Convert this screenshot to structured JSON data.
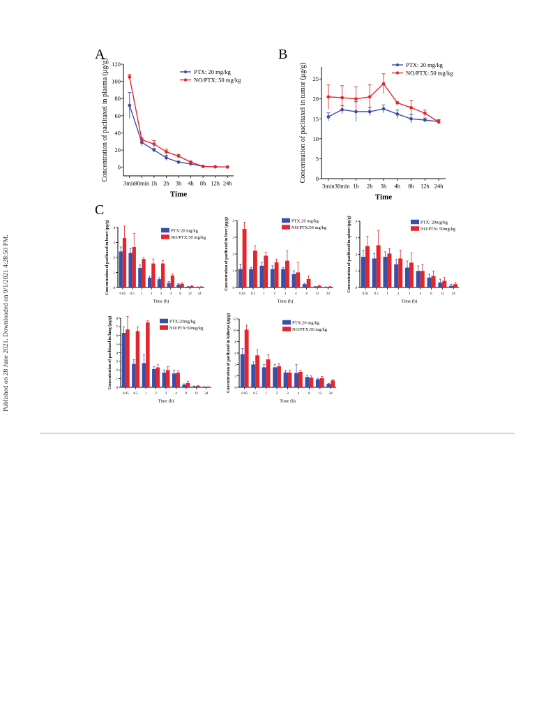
{
  "side_note": "Published on 28 June 2021. Downloaded on 9/1/2021 4:28:50 PM.",
  "colors": {
    "ptx": "#3a4fa8",
    "nopt": "#e3252c",
    "axis": "#000000"
  },
  "chart_data": [
    {
      "panel": "A",
      "type": "line",
      "ylabel": "Concentration of paclitaxel in plasma (μg/g)",
      "xlabel": "Time",
      "categories": [
        "3min",
        "30min",
        "1h",
        "2h",
        "3h",
        "4h",
        "8h",
        "12h",
        "24h"
      ],
      "ylim": [
        -10,
        120
      ],
      "yticks": [
        0,
        20,
        40,
        60,
        80,
        100,
        120
      ],
      "legend_position": "top-right",
      "series": [
        {
          "name": "PTX: 20 mg/kg",
          "values": [
            72,
            29,
            20,
            11,
            6,
            4,
            1,
            0.5,
            0.3
          ],
          "errors": [
            15,
            4,
            2,
            3,
            1,
            1,
            0.5,
            0.3,
            0.2
          ]
        },
        {
          "name": "NO/PTX: 50 mg/kg",
          "values": [
            105,
            32,
            27,
            18,
            13,
            6,
            1,
            0.5,
            0.3
          ],
          "errors": [
            3,
            3,
            4,
            3,
            2,
            1,
            0.5,
            0.3,
            0.2
          ]
        }
      ]
    },
    {
      "panel": "B",
      "type": "line",
      "ylabel": "Concentration of paclitaxel in tumor (μg/g)",
      "xlabel": "Time",
      "categories": [
        "3min",
        "30min",
        "1h",
        "2h",
        "3h",
        "4h",
        "8h",
        "12h",
        "24h"
      ],
      "ylim": [
        0,
        28
      ],
      "yticks": [
        0,
        5,
        10,
        15,
        20,
        25
      ],
      "legend_position": "top-right",
      "series": [
        {
          "name": "PTX: 20 mg/kg",
          "values": [
            15.5,
            17.3,
            16.8,
            16.8,
            17.5,
            16.2,
            15.0,
            14.7,
            14.3
          ],
          "errors": [
            1.0,
            1.0,
            2.5,
            1.0,
            1.0,
            1.0,
            1.0,
            0.5,
            0.5
          ]
        },
        {
          "name": "NO/PTX: 50 mg/kg",
          "values": [
            20.5,
            20.3,
            20.0,
            20.5,
            23.8,
            19.0,
            17.8,
            16.4,
            14.2
          ],
          "errors": [
            3.0,
            3.0,
            3.0,
            3.0,
            2.5,
            0.3,
            1.8,
            0.8,
            0.5
          ]
        }
      ]
    },
    {
      "panel": "C-heart",
      "type": "bar",
      "ylabel": "Concentration of paclitaxel in heart (μg/g)",
      "xlabel": "Time (h)",
      "categories": [
        "0.05",
        "0.5",
        "1",
        "2",
        "3",
        "4",
        "8",
        "12",
        "24"
      ],
      "ylim": [
        0,
        4
      ],
      "yticks": [
        0,
        1,
        2,
        3,
        4
      ],
      "legend_position": "top-right",
      "series": [
        {
          "name": "PTX:20 mg/kg",
          "values": [
            2.4,
            2.3,
            1.3,
            0.65,
            0.55,
            0.3,
            0.2,
            0.05,
            0.03
          ],
          "errors": [
            0.3,
            0.3,
            0.2,
            0.1,
            0.1,
            0.1,
            0.05,
            0.02,
            0.01
          ]
        },
        {
          "name": "NO/PTX:50 mg/kg",
          "values": [
            3.3,
            2.7,
            1.9,
            1.6,
            1.6,
            0.8,
            0.25,
            0.1,
            0.05
          ],
          "errors": [
            0.8,
            0.9,
            0.1,
            0.3,
            0.2,
            0.1,
            0.05,
            0.03,
            0.01
          ]
        }
      ]
    },
    {
      "panel": "C-liver",
      "type": "bar",
      "ylabel": "Concentration of paclitaxel in liver (μg/g)",
      "xlabel": "Time (h)",
      "categories": [
        "0.05",
        "0.5",
        "1",
        "2",
        "3",
        "4",
        "8",
        "12",
        "24"
      ],
      "ylim": [
        0,
        4
      ],
      "yticks": [
        0,
        1,
        2,
        3,
        4
      ],
      "legend_position": "top-right",
      "series": [
        {
          "name": "PTX:20 mg/kg",
          "values": [
            1.1,
            1.1,
            1.3,
            1.1,
            1.1,
            0.8,
            0.2,
            0.05,
            0.03
          ],
          "errors": [
            0.3,
            0.1,
            0.2,
            0.2,
            0.1,
            0.2,
            0.05,
            0.02,
            0.01
          ]
        },
        {
          "name": "NO/PTX:50 mg/kg",
          "values": [
            3.5,
            2.2,
            1.9,
            1.5,
            1.6,
            0.9,
            0.5,
            0.1,
            0.05
          ],
          "errors": [
            0.4,
            0.3,
            0.2,
            0.2,
            0.6,
            0.6,
            0.2,
            0.03,
            0.01
          ]
        }
      ]
    },
    {
      "panel": "C-spleen",
      "type": "bar",
      "ylabel": "Concentration of paclitaxel in spleen (μg/g)",
      "xlabel": "Time (h)",
      "categories": [
        "0.05",
        "0.5",
        "1",
        "2",
        "3",
        "4",
        "8",
        "12",
        "24"
      ],
      "ylim": [
        0,
        4
      ],
      "yticks": [
        0,
        1,
        2,
        3,
        4
      ],
      "legend_position": "top-right",
      "series": [
        {
          "name": "PTX: 20mg/kg",
          "values": [
            1.85,
            1.75,
            1.85,
            1.4,
            1.2,
            1.0,
            0.6,
            0.3,
            0.1
          ],
          "errors": [
            0.4,
            0.3,
            0.3,
            0.3,
            0.4,
            0.3,
            0.2,
            0.2,
            0.1
          ]
        },
        {
          "name": "NO/PTX: 50mg/kg",
          "values": [
            2.5,
            2.55,
            2.05,
            1.75,
            1.5,
            1.0,
            0.7,
            0.4,
            0.2
          ],
          "errors": [
            0.6,
            0.9,
            0.3,
            0.5,
            0.6,
            0.4,
            0.3,
            0.2,
            0.1
          ]
        }
      ]
    },
    {
      "panel": "C-lung",
      "type": "bar",
      "ylabel": "Concentration of paclitaxel in lung (μg/g)",
      "xlabel": "Time (h)",
      "categories": [
        "0.05",
        "0.5",
        "1",
        "2",
        "3",
        "4",
        "8",
        "12",
        "24"
      ],
      "ylim": [
        0,
        8
      ],
      "yticks": [
        0,
        1,
        2,
        3,
        4,
        5,
        6,
        7,
        8
      ],
      "legend_position": "top-right",
      "series": [
        {
          "name": "PTX:20mg/kg",
          "values": [
            6.3,
            2.7,
            2.8,
            2.1,
            1.7,
            1.6,
            0.3,
            0.1,
            0.05
          ],
          "errors": [
            0.7,
            0.5,
            1.0,
            0.3,
            0.3,
            0.4,
            0.1,
            0.05,
            0.02
          ]
        },
        {
          "name": "NO/PTX:50mg/kg",
          "values": [
            6.7,
            6.5,
            7.5,
            2.3,
            2.0,
            1.7,
            0.5,
            0.15,
            0.05
          ],
          "errors": [
            1.5,
            0.5,
            0.2,
            0.3,
            0.4,
            0.2,
            0.2,
            0.05,
            0.02
          ]
        }
      ]
    },
    {
      "panel": "C-kidneys",
      "type": "bar",
      "ylabel": "Concentration of paclitaxel in kidneys (μg/g)",
      "xlabel": "Time (h)",
      "categories": [
        "0.05",
        "0.5",
        "1",
        "2",
        "3",
        "4",
        "8",
        "12",
        "24"
      ],
      "ylim": [
        0,
        12
      ],
      "yticks": [
        0,
        2,
        4,
        6,
        8,
        10,
        12
      ],
      "legend_position": "top-right",
      "series": [
        {
          "name": "PTX:20 mg/kg",
          "values": [
            5.8,
            4.0,
            3.5,
            3.5,
            2.6,
            2.5,
            1.8,
            1.4,
            0.6
          ],
          "errors": [
            1.0,
            0.5,
            0.5,
            0.5,
            0.4,
            1.5,
            0.3,
            0.2,
            0.1
          ]
        },
        {
          "name": "NO/PTX:50 mg/kg",
          "values": [
            10.1,
            5.6,
            4.9,
            3.7,
            2.6,
            2.7,
            1.7,
            1.6,
            1.2
          ],
          "errors": [
            0.8,
            1.0,
            0.8,
            0.5,
            0.4,
            0.3,
            0.3,
            0.3,
            0.2
          ]
        }
      ]
    }
  ],
  "panel_labels": [
    "A",
    "B",
    "C"
  ]
}
